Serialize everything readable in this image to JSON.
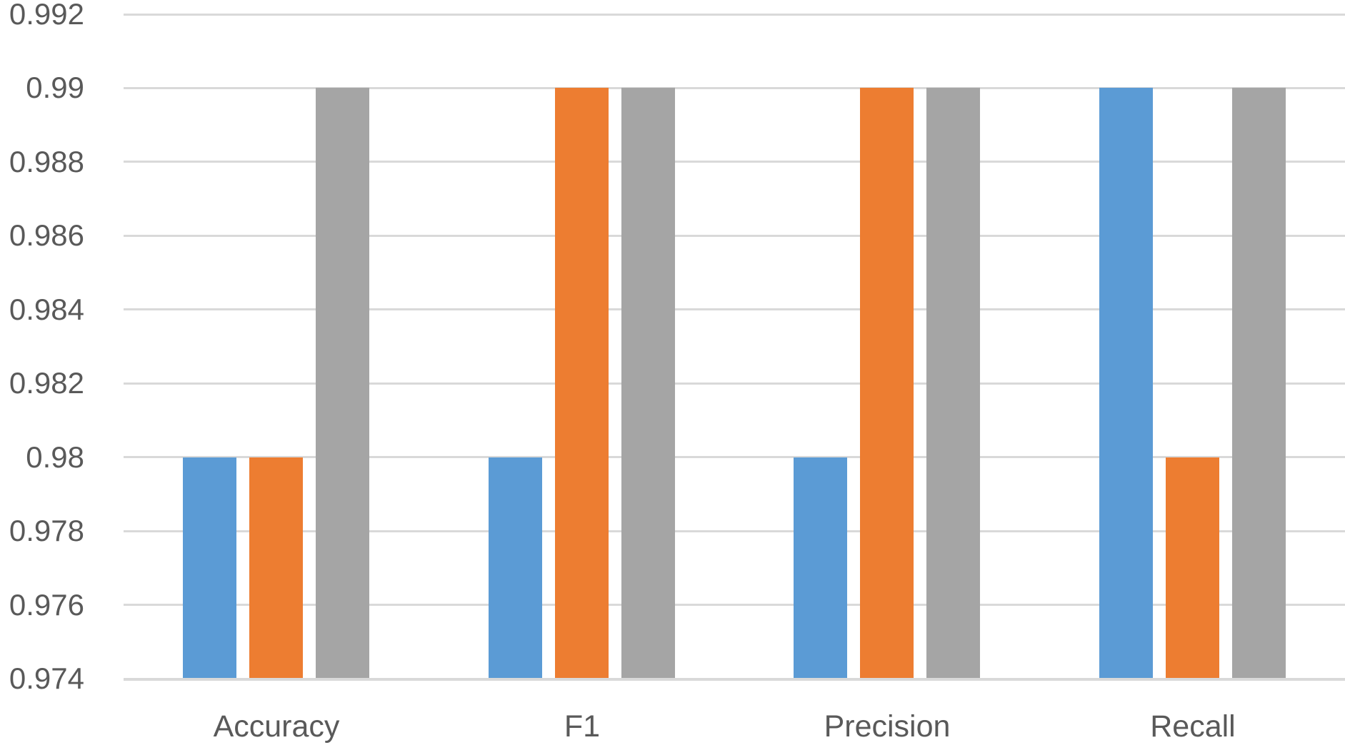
{
  "chart_data": {
    "type": "bar",
    "title": "",
    "xlabel": "",
    "ylabel": "",
    "categories": [
      "Accuracy",
      "F1",
      "Precision",
      "Recall"
    ],
    "series": [
      {
        "color": "#5B9BD5",
        "values": [
          0.98,
          0.98,
          0.98,
          0.99
        ]
      },
      {
        "color": "#ED7D31",
        "values": [
          0.98,
          0.99,
          0.99,
          0.98
        ]
      },
      {
        "color": "#A5A5A5",
        "values": [
          0.99,
          0.99,
          0.99,
          0.99
        ]
      }
    ],
    "ylim": [
      0.974,
      0.992
    ],
    "ytick_step": 0.002,
    "yticks": [
      0.974,
      0.976,
      0.978,
      0.98,
      0.982,
      0.984,
      0.986,
      0.988,
      0.99,
      0.992
    ],
    "grid": true,
    "legend_position": "none",
    "colors": {
      "gridline": "#D9D9D9",
      "axis_line": "#D9D9D9",
      "axis_text": "#595959",
      "background": "#FFFFFF"
    }
  }
}
